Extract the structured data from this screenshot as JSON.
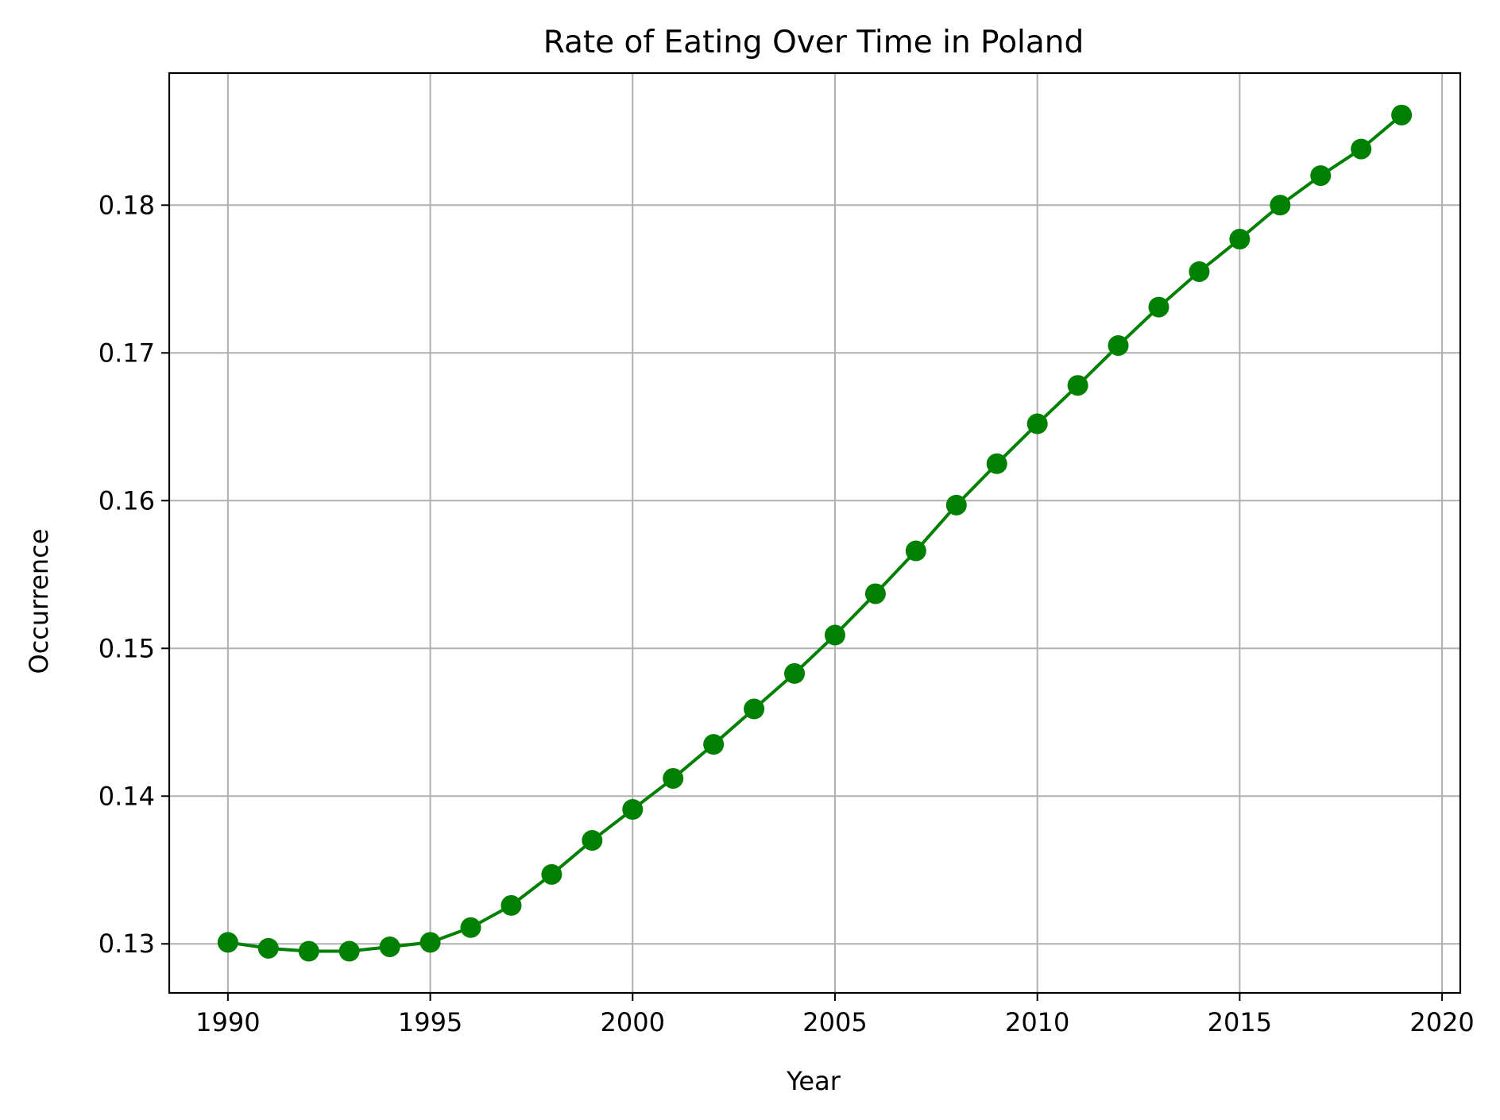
{
  "chart_data": {
    "type": "line",
    "title": "Rate of Eating Over Time in Poland",
    "xlabel": "Year",
    "ylabel": "Occurrence",
    "x": [
      1990,
      1991,
      1992,
      1993,
      1994,
      1995,
      1996,
      1997,
      1998,
      1999,
      2000,
      2001,
      2002,
      2003,
      2004,
      2005,
      2006,
      2007,
      2008,
      2009,
      2010,
      2011,
      2012,
      2013,
      2014,
      2015,
      2016,
      2017,
      2018,
      2019
    ],
    "series": [
      {
        "name": "Occurrence",
        "color": "#008000",
        "marker": "circle",
        "values": [
          0.1301,
          0.1297,
          0.1295,
          0.1295,
          0.1298,
          0.1301,
          0.1311,
          0.1326,
          0.1347,
          0.137,
          0.1391,
          0.1412,
          0.1435,
          0.1459,
          0.1483,
          0.1509,
          0.1537,
          0.1566,
          0.1597,
          0.1625,
          0.1652,
          0.1678,
          0.1705,
          0.1731,
          0.1755,
          0.1777,
          0.18,
          0.182,
          0.1838,
          0.1861
        ]
      }
    ],
    "xlim": [
      1988.55,
      2020.45
    ],
    "ylim": [
      0.12668,
      0.18894
    ],
    "xticks": [
      1990,
      1995,
      2000,
      2005,
      2010,
      2015,
      2020
    ],
    "xtick_labels": [
      "1990",
      "1995",
      "2000",
      "2005",
      "2010",
      "2015",
      "2020"
    ],
    "yticks": [
      0.13,
      0.14,
      0.15,
      0.16,
      0.17,
      0.18
    ],
    "ytick_labels": [
      "0.13",
      "0.14",
      "0.15",
      "0.16",
      "0.17",
      "0.18"
    ],
    "grid": true,
    "grid_color": "#b0b0b0",
    "legend": "none"
  }
}
